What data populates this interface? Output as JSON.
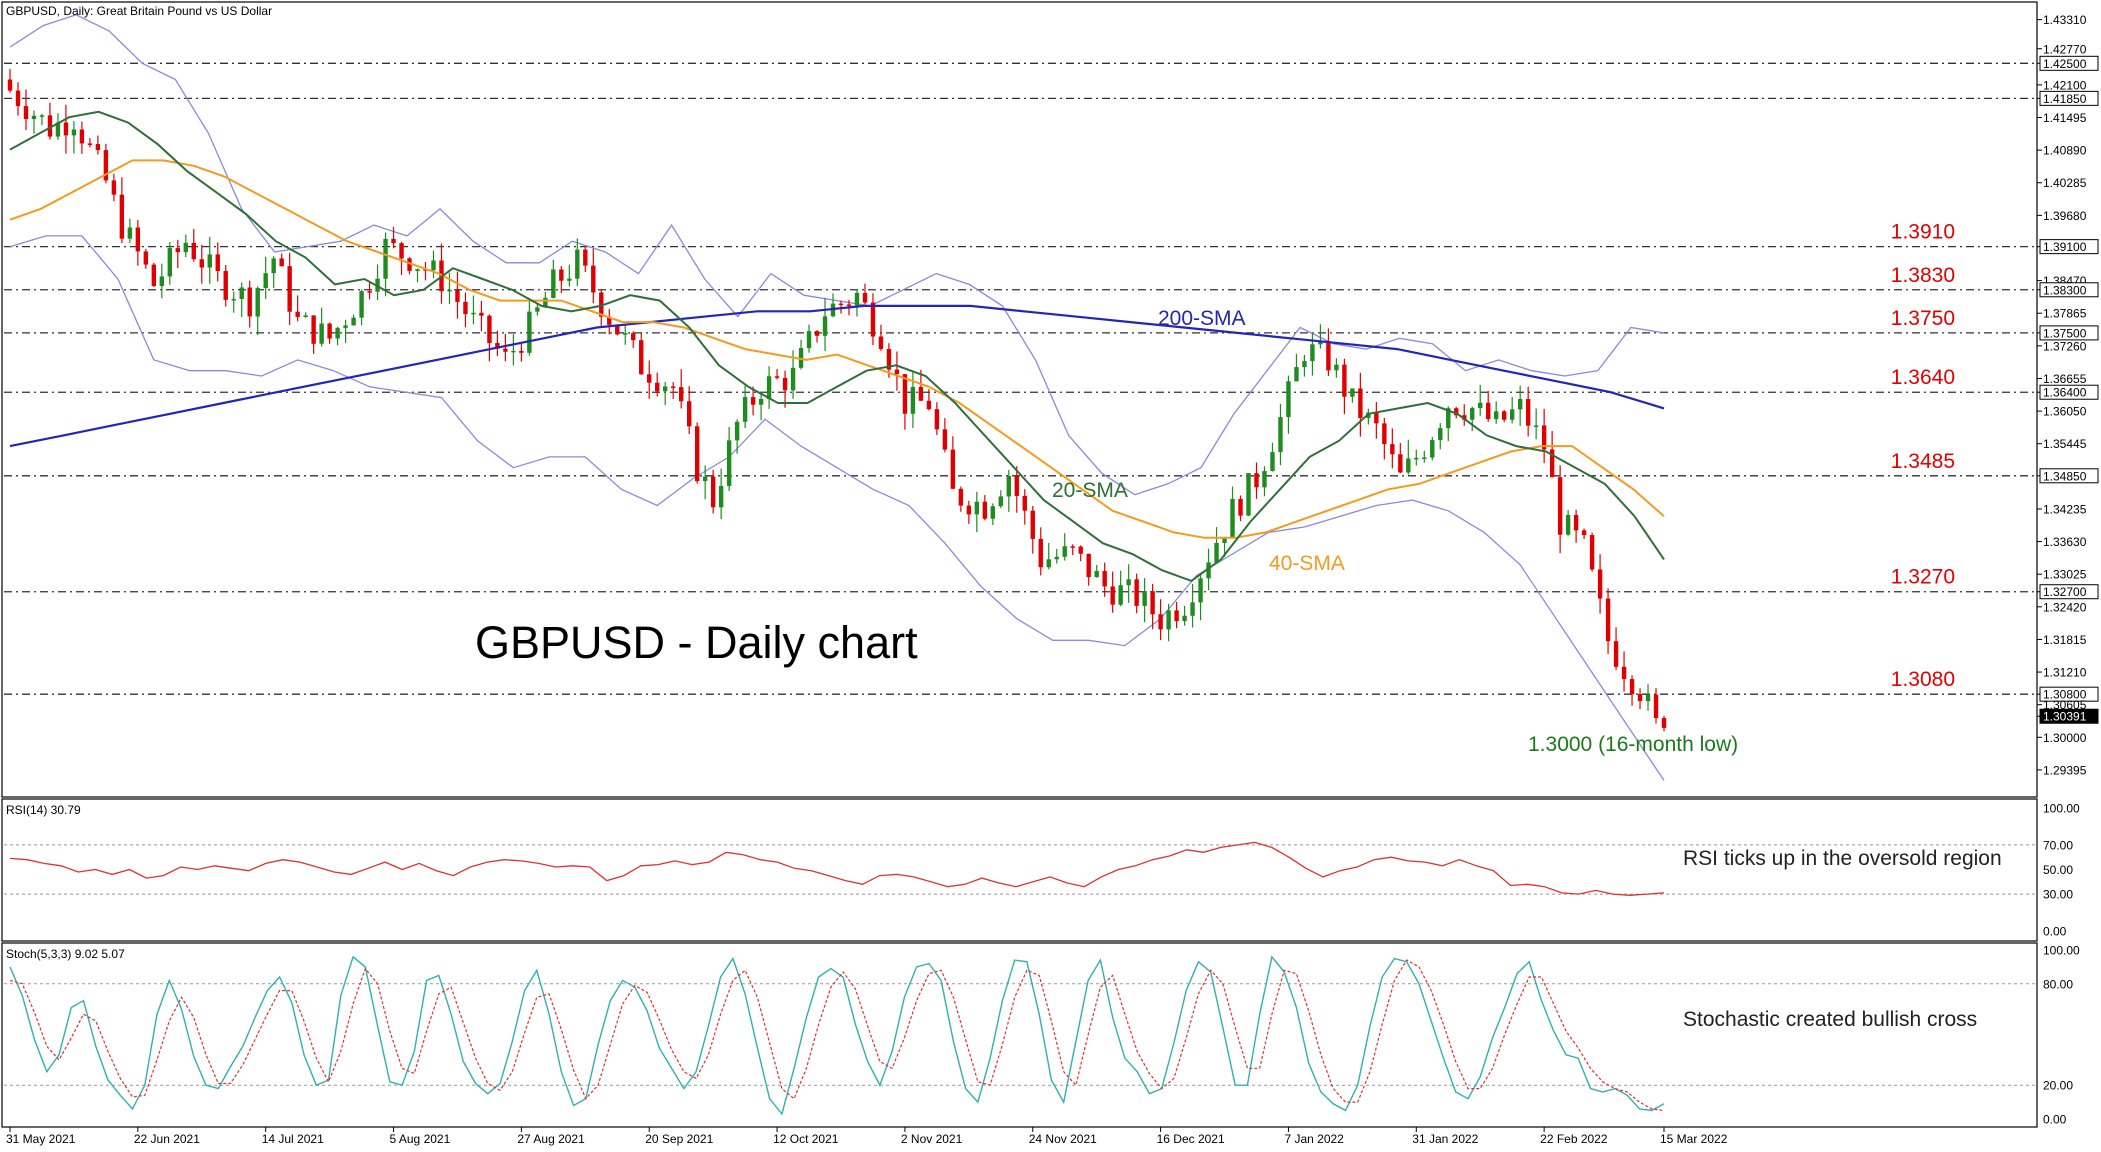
{
  "chart_data": {
    "type": "candlestick",
    "symbol_header": "GBPUSD, Daily:  Great Britain Pound vs US Dollar",
    "title": "GBPUSD - Daily chart",
    "colors": {
      "bull": "#1e8c1e",
      "bear": "#e00000",
      "sma20": "#2f6f3a",
      "sma40": "#f59a1f",
      "sma200": "#2424b8",
      "bands": "#8a8adb",
      "rsi": "#e03030",
      "stoch_main": "#30b0b0",
      "stoch_signal": "#e03030",
      "level_label": "#e00000",
      "low_label": "#1a7a1a",
      "axis": "#000000"
    },
    "main_panel": {
      "ylim": [
        1.2893,
        1.436
      ],
      "price_axis_ticks": [
        "1.43310",
        "1.42770",
        "1.42500",
        "1.42100",
        "1.41850",
        "1.41495",
        "1.40890",
        "1.40285",
        "1.39680",
        "1.39100",
        "1.38470",
        "1.38300",
        "1.37865",
        "1.37500",
        "1.37260",
        "1.36655",
        "1.36400",
        "1.36050",
        "1.35445",
        "1.34850",
        "1.34235",
        "1.33630",
        "1.33025",
        "1.32700",
        "1.32420",
        "1.31815",
        "1.31210",
        "1.30800",
        "1.30605",
        "1.30391",
        "1.30000",
        "1.29395"
      ],
      "current_price": "1.30391",
      "levels": [
        {
          "value": 1.425,
          "axis_label": "1.42500",
          "label": ""
        },
        {
          "value": 1.4185,
          "axis_label": "1.41850",
          "label": ""
        },
        {
          "value": 1.391,
          "axis_label": "1.39100",
          "label": "1.3910"
        },
        {
          "value": 1.383,
          "axis_label": "1.38300",
          "label": "1.3830"
        },
        {
          "value": 1.375,
          "axis_label": "1.37500",
          "label": "1.3750"
        },
        {
          "value": 1.364,
          "axis_label": "1.36400",
          "label": "1.3640"
        },
        {
          "value": 1.3485,
          "axis_label": "1.34850",
          "label": "1.3485"
        },
        {
          "value": 1.327,
          "axis_label": "1.32700",
          "label": "1.3270"
        },
        {
          "value": 1.308,
          "axis_label": "1.30800",
          "label": "1.3080"
        }
      ],
      "annotations": {
        "sma200": "200-SMA",
        "sma20": "20-SMA",
        "sma40": "40-SMA",
        "low": "1.3000 (16-month low)"
      },
      "series_sma200": [
        1.354,
        1.356,
        1.358,
        1.36,
        1.362,
        1.364,
        1.366,
        1.368,
        1.37,
        1.372,
        1.374,
        1.376,
        1.377,
        1.378,
        1.379,
        1.379,
        1.38,
        1.38,
        1.38,
        1.379,
        1.378,
        1.377,
        1.376,
        1.375,
        1.374,
        1.373,
        1.372,
        1.37,
        1.368,
        1.366,
        1.364,
        1.361
      ],
      "series_sma40": [
        1.396,
        1.398,
        1.401,
        1.404,
        1.407,
        1.407,
        1.406,
        1.404,
        1.401,
        1.398,
        1.395,
        1.392,
        1.39,
        1.388,
        1.386,
        1.383,
        1.381,
        1.381,
        1.381,
        1.379,
        1.377,
        1.377,
        1.376,
        1.374,
        1.372,
        1.371,
        1.37,
        1.371,
        1.369,
        1.367,
        1.365,
        1.362,
        1.358,
        1.354,
        1.35,
        1.346,
        1.342,
        1.34,
        1.338,
        1.337,
        1.337,
        1.338,
        1.34,
        1.342,
        1.344,
        1.346,
        1.347,
        1.349,
        1.351,
        1.353,
        1.354,
        1.354,
        1.35,
        1.346,
        1.341
      ],
      "series_sma20": [
        1.409,
        1.412,
        1.415,
        1.416,
        1.414,
        1.41,
        1.405,
        1.401,
        1.397,
        1.392,
        1.389,
        1.384,
        1.385,
        1.382,
        1.383,
        1.387,
        1.385,
        1.383,
        1.38,
        1.379,
        1.38,
        1.382,
        1.381,
        1.376,
        1.369,
        1.365,
        1.362,
        1.362,
        1.365,
        1.368,
        1.369,
        1.367,
        1.362,
        1.356,
        1.35,
        1.344,
        1.34,
        1.336,
        1.334,
        1.331,
        1.329,
        1.333,
        1.34,
        1.346,
        1.352,
        1.355,
        1.36,
        1.361,
        1.362,
        1.36,
        1.356,
        1.354,
        1.353,
        1.35,
        1.347,
        1.341,
        1.333
      ],
      "series_bb_upper": [
        1.428,
        1.432,
        1.434,
        1.431,
        1.425,
        1.422,
        1.412,
        1.398,
        1.39,
        1.391,
        1.392,
        1.395,
        1.393,
        1.398,
        1.392,
        1.388,
        1.388,
        1.392,
        1.39,
        1.386,
        1.395,
        1.385,
        1.378,
        1.386,
        1.382,
        1.381,
        1.38,
        1.383,
        1.386,
        1.384,
        1.38,
        1.37,
        1.356,
        1.349,
        1.345,
        1.347,
        1.35,
        1.36,
        1.368,
        1.376,
        1.373,
        1.372,
        1.374,
        1.373,
        1.368,
        1.37,
        1.368,
        1.367,
        1.368,
        1.376,
        1.375
      ],
      "series_bb_lower": [
        1.391,
        1.393,
        1.393,
        1.385,
        1.37,
        1.368,
        1.368,
        1.367,
        1.37,
        1.368,
        1.365,
        1.364,
        1.363,
        1.355,
        1.35,
        1.352,
        1.352,
        1.346,
        1.343,
        1.348,
        1.352,
        1.359,
        1.354,
        1.35,
        1.346,
        1.343,
        1.336,
        1.328,
        1.322,
        1.318,
        1.318,
        1.317,
        1.322,
        1.33,
        1.334,
        1.338,
        1.339,
        1.341,
        1.343,
        1.344,
        1.342,
        1.338,
        1.332,
        1.322,
        1.312,
        1.302,
        1.292
      ]
    },
    "rsi_panel": {
      "label": "RSI(14) 30.79",
      "ylim": [
        0,
        100
      ],
      "ticks": [
        "100.00",
        "70.00",
        "50.00",
        "30.00",
        "0.00"
      ],
      "levels": [
        70,
        30
      ],
      "annotation": "RSI ticks up in the oversold region",
      "values": [
        59,
        58,
        55,
        53,
        48,
        50,
        46,
        50,
        43,
        45,
        52,
        50,
        53,
        51,
        49,
        55,
        58,
        56,
        52,
        48,
        46,
        51,
        56,
        50,
        55,
        49,
        45,
        52,
        56,
        58,
        57,
        55,
        52,
        53,
        52,
        41,
        45,
        53,
        54,
        57,
        54,
        56,
        64,
        62,
        58,
        56,
        51,
        49,
        45,
        41,
        38,
        45,
        46,
        44,
        40,
        36,
        38,
        43,
        39,
        36,
        40,
        44,
        39,
        36,
        44,
        50,
        53,
        58,
        61,
        66,
        64,
        68,
        70,
        72,
        68,
        60,
        51,
        44,
        49,
        52,
        58,
        60,
        57,
        56,
        53,
        58,
        53,
        49,
        37,
        38,
        36,
        31,
        30,
        33,
        30,
        29,
        30,
        31
      ]
    },
    "stoch_panel": {
      "label": "Stoch(5,3,3) 9.02 5.07",
      "ylim": [
        0,
        100
      ],
      "ticks": [
        "100.00",
        "80.00",
        "20.00",
        "0.00"
      ],
      "levels": [
        80,
        20
      ],
      "annotation": "Stochastic created bullish cross",
      "main": [
        90,
        73,
        47,
        28,
        38,
        66,
        70,
        43,
        23,
        14,
        6,
        20,
        62,
        82,
        65,
        37,
        20,
        18,
        31,
        43,
        60,
        76,
        84,
        69,
        38,
        20,
        23,
        73,
        96,
        90,
        55,
        22,
        20,
        40,
        82,
        85,
        62,
        34,
        21,
        15,
        21,
        46,
        76,
        88,
        62,
        28,
        8,
        12,
        44,
        70,
        82,
        78,
        64,
        42,
        30,
        18,
        28,
        55,
        84,
        95,
        74,
        42,
        12,
        3,
        30,
        60,
        84,
        89,
        84,
        56,
        34,
        20,
        40,
        72,
        90,
        92,
        82,
        46,
        18,
        10,
        36,
        70,
        94,
        93,
        62,
        23,
        10,
        46,
        82,
        94,
        60,
        36,
        28,
        15,
        18,
        45,
        76,
        93,
        87,
        54,
        20,
        20,
        62,
        96,
        87,
        66,
        33,
        16,
        9,
        5,
        20,
        55,
        84,
        95,
        93,
        80,
        58,
        36,
        16,
        12,
        25,
        48,
        66,
        86,
        93,
        70,
        52,
        38,
        36,
        18,
        16,
        18,
        14,
        6,
        5,
        9
      ],
      "signal": [
        82,
        80,
        63,
        43,
        35,
        48,
        62,
        58,
        40,
        24,
        13,
        14,
        35,
        58,
        72,
        60,
        38,
        21,
        21,
        32,
        47,
        62,
        76,
        76,
        58,
        36,
        22,
        40,
        68,
        89,
        80,
        52,
        30,
        27,
        52,
        74,
        78,
        57,
        36,
        21,
        17,
        28,
        51,
        72,
        74,
        53,
        29,
        12,
        20,
        44,
        68,
        79,
        75,
        59,
        41,
        28,
        24,
        38,
        62,
        82,
        88,
        72,
        45,
        18,
        12,
        30,
        56,
        78,
        87,
        77,
        55,
        34,
        30,
        48,
        70,
        86,
        88,
        72,
        47,
        22,
        20,
        44,
        72,
        88,
        85,
        58,
        28,
        20,
        50,
        78,
        85,
        62,
        40,
        27,
        18,
        24,
        48,
        74,
        88,
        80,
        54,
        30,
        30,
        62,
        88,
        86,
        64,
        38,
        18,
        10,
        10,
        28,
        56,
        82,
        94,
        90,
        76,
        56,
        34,
        18,
        18,
        30,
        50,
        68,
        84,
        84,
        68,
        52,
        42,
        30,
        22,
        18,
        16,
        10,
        6,
        5
      ]
    },
    "x_ticks": [
      "31 May 2021",
      "22 Jun 2021",
      "14 Jul 2021",
      "5 Aug 2021",
      "27 Aug 2021",
      "20 Sep 2021",
      "12 Oct 2021",
      "2 Nov 2021",
      "24 Nov 2021",
      "16 Dec 2021",
      "7 Jan 2022",
      "31 Jan 2022",
      "22 Feb 2022",
      "15 Mar 2022"
    ],
    "candles": {
      "count": 208,
      "anchors_close": [
        [
          0,
          1.42
        ],
        [
          5,
          1.413
        ],
        [
          8,
          1.415
        ],
        [
          12,
          1.403
        ],
        [
          14,
          1.395
        ],
        [
          18,
          1.384
        ],
        [
          22,
          1.392
        ],
        [
          26,
          1.385
        ],
        [
          30,
          1.381
        ],
        [
          33,
          1.389
        ],
        [
          36,
          1.377
        ],
        [
          40,
          1.374
        ],
        [
          44,
          1.382
        ],
        [
          47,
          1.391
        ],
        [
          50,
          1.389
        ],
        [
          54,
          1.385
        ],
        [
          58,
          1.377
        ],
        [
          62,
          1.37
        ],
        [
          65,
          1.376
        ],
        [
          68,
          1.384
        ],
        [
          71,
          1.388
        ],
        [
          75,
          1.378
        ],
        [
          79,
          1.369
        ],
        [
          83,
          1.365
        ],
        [
          86,
          1.35
        ],
        [
          88,
          1.344
        ],
        [
          91,
          1.358
        ],
        [
          94,
          1.365
        ],
        [
          98,
          1.367
        ],
        [
          102,
          1.379
        ],
        [
          106,
          1.382
        ],
        [
          109,
          1.375
        ],
        [
          112,
          1.362
        ],
        [
          115,
          1.362
        ],
        [
          118,
          1.345
        ],
        [
          122,
          1.343
        ],
        [
          125,
          1.349
        ],
        [
          129,
          1.333
        ],
        [
          133,
          1.334
        ],
        [
          137,
          1.328
        ],
        [
          141,
          1.326
        ],
        [
          144,
          1.322
        ],
        [
          147,
          1.325
        ],
        [
          150,
          1.334
        ],
        [
          153,
          1.342
        ],
        [
          156,
          1.348
        ],
        [
          159,
          1.359
        ],
        [
          162,
          1.372
        ],
        [
          165,
          1.37
        ],
        [
          168,
          1.362
        ],
        [
          171,
          1.357
        ],
        [
          174,
          1.348
        ],
        [
          177,
          1.354
        ],
        [
          180,
          1.362
        ],
        [
          183,
          1.361
        ],
        [
          186,
          1.358
        ],
        [
          189,
          1.361
        ],
        [
          192,
          1.354
        ],
        [
          194,
          1.34
        ],
        [
          197,
          1.335
        ],
        [
          200,
          1.318
        ],
        [
          202,
          1.313
        ],
        [
          204,
          1.309
        ],
        [
          206,
          1.302
        ],
        [
          207,
          1.304
        ]
      ]
    }
  }
}
